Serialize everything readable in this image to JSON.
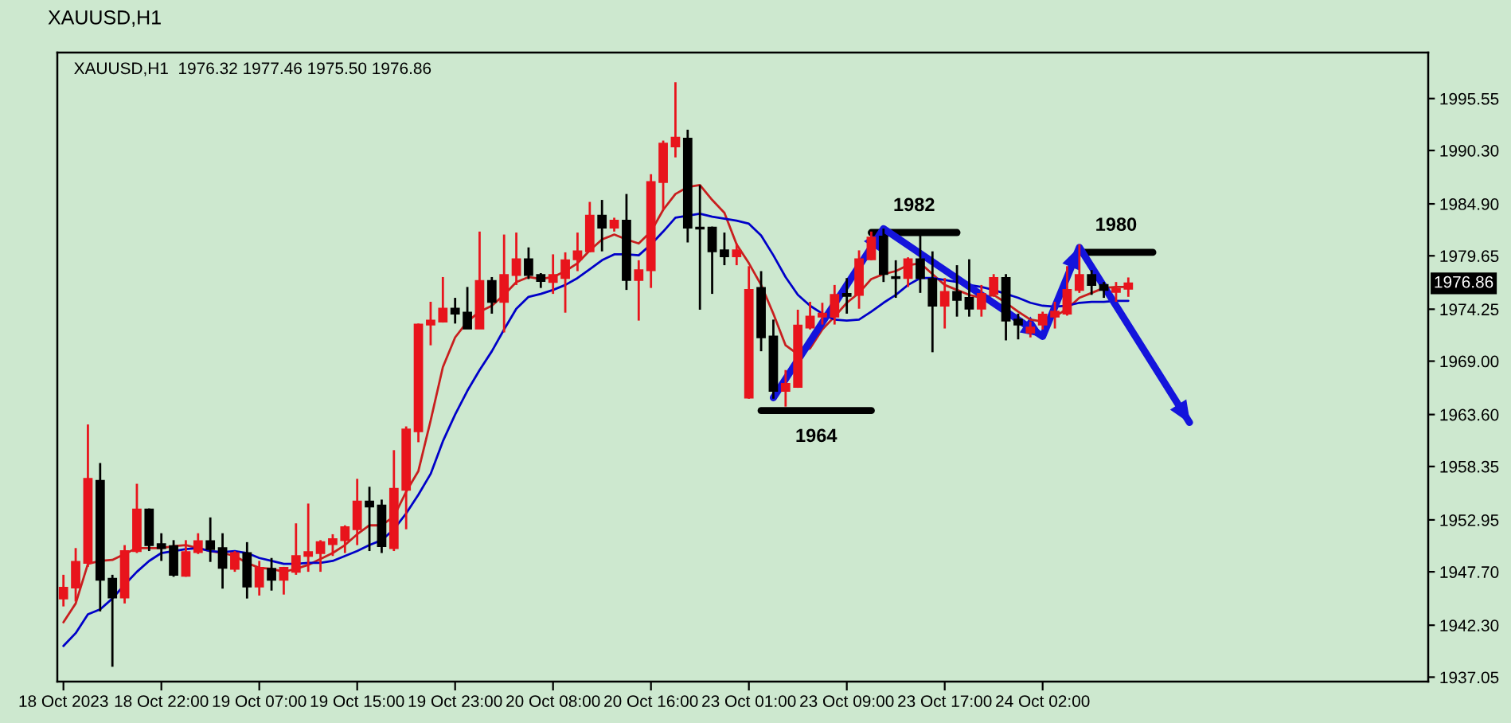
{
  "chart_data": {
    "type": "candlestick",
    "title": "XAUUSD,H1",
    "subtitle": "XAUUSD,H1  1976.32 1977.46 1975.50 1976.86",
    "categories": [
      "18 Oct 2023",
      null,
      null,
      null,
      null,
      null,
      null,
      null,
      "18 Oct 22:00",
      null,
      null,
      null,
      null,
      null,
      null,
      null,
      "19 Oct 07:00",
      null,
      null,
      null,
      null,
      null,
      null,
      null,
      "19 Oct 15:00",
      null,
      null,
      null,
      null,
      null,
      null,
      null,
      "19 Oct 23:00",
      null,
      null,
      null,
      null,
      null,
      null,
      null,
      "20 Oct 08:00",
      null,
      null,
      null,
      null,
      null,
      null,
      null,
      "20 Oct 16:00",
      null,
      null,
      null,
      null,
      null,
      null,
      null,
      "23 Oct 01:00",
      null,
      null,
      null,
      null,
      null,
      null,
      null,
      "23 Oct 09:00",
      null,
      null,
      null,
      null,
      null,
      null,
      null,
      "23 Oct 17:00",
      null,
      null,
      null,
      null,
      null,
      null,
      null,
      "24 Oct 02:00",
      null,
      null,
      null,
      null,
      null,
      null,
      null,
      null,
      null,
      null,
      null,
      null,
      null,
      null,
      null,
      null,
      null,
      null,
      null,
      null,
      null,
      null,
      null,
      null,
      null,
      null,
      null,
      null,
      null,
      null,
      null
    ],
    "ohlc": [
      [
        1945.0,
        1947.4,
        1944.2,
        1946.1
      ],
      [
        1946.1,
        1950.1,
        1944.7,
        1948.7
      ],
      [
        1948.6,
        1962.6,
        1948.2,
        1957.1
      ],
      [
        1956.9,
        1958.7,
        1943.7,
        1946.9
      ],
      [
        1947.0,
        1947.4,
        1938.1,
        1945.1
      ],
      [
        1945.1,
        1950.4,
        1944.5,
        1949.8
      ],
      [
        1949.8,
        1956.6,
        1949.6,
        1954.0
      ],
      [
        1954.0,
        1954.1,
        1949.8,
        1950.4
      ],
      [
        1950.5,
        1951.6,
        1948.8,
        1950.1
      ],
      [
        1950.3,
        1950.9,
        1947.2,
        1947.4
      ],
      [
        1947.3,
        1950.9,
        1947.2,
        1949.7
      ],
      [
        1949.7,
        1951.6,
        1949.5,
        1950.8
      ],
      [
        1950.8,
        1953.2,
        1948.7,
        1950.0
      ],
      [
        1950.1,
        1951.6,
        1946.0,
        1948.1
      ],
      [
        1948.0,
        1949.8,
        1947.7,
        1949.6
      ],
      [
        1949.6,
        1950.7,
        1945.0,
        1946.2
      ],
      [
        1946.2,
        1948.8,
        1945.3,
        1948.1
      ],
      [
        1948.0,
        1949.1,
        1945.8,
        1946.9
      ],
      [
        1946.9,
        1948.2,
        1945.4,
        1948.1
      ],
      [
        1947.7,
        1952.6,
        1947.4,
        1949.3
      ],
      [
        1949.3,
        1954.6,
        1947.7,
        1949.7
      ],
      [
        1949.6,
        1950.9,
        1947.7,
        1950.7
      ],
      [
        1950.5,
        1951.5,
        1949.3,
        1951.0
      ],
      [
        1950.9,
        1952.4,
        1949.6,
        1952.2
      ],
      [
        1952.0,
        1957.1,
        1950.4,
        1954.8
      ],
      [
        1954.8,
        1956.3,
        1949.8,
        1954.3
      ],
      [
        1954.4,
        1955.0,
        1949.6,
        1950.3
      ],
      [
        1950.1,
        1960.0,
        1949.8,
        1956.1
      ],
      [
        1956.0,
        1962.4,
        1952.0,
        1962.1
      ],
      [
        1961.9,
        1972.8,
        1960.8,
        1972.7
      ],
      [
        1972.7,
        1975.0,
        1970.6,
        1973.1
      ],
      [
        1973.0,
        1977.5,
        1972.9,
        1974.3
      ],
      [
        1974.3,
        1975.4,
        1972.8,
        1973.8
      ],
      [
        1973.9,
        1976.5,
        1972.3,
        1972.3
      ],
      [
        1972.3,
        1982.1,
        1972.3,
        1977.1
      ],
      [
        1977.1,
        1977.5,
        1973.8,
        1975.0
      ],
      [
        1975.0,
        1981.8,
        1971.9,
        1977.7
      ],
      [
        1977.7,
        1982.0,
        1976.7,
        1979.3
      ],
      [
        1979.3,
        1980.5,
        1977.3,
        1977.7
      ],
      [
        1977.7,
        1977.9,
        1976.4,
        1977.1
      ],
      [
        1977.0,
        1979.8,
        1975.8,
        1977.7
      ],
      [
        1977.4,
        1980.0,
        1973.9,
        1979.2
      ],
      [
        1979.3,
        1982.0,
        1978.1,
        1980.1
      ],
      [
        1980.1,
        1985.1,
        1980.0,
        1983.7
      ],
      [
        1983.7,
        1985.3,
        1980.1,
        1982.5
      ],
      [
        1982.5,
        1983.5,
        1982.1,
        1983.2
      ],
      [
        1983.2,
        1985.9,
        1976.2,
        1977.2
      ],
      [
        1977.2,
        1979.2,
        1973.1,
        1978.2
      ],
      [
        1978.2,
        1987.9,
        1976.4,
        1987.1
      ],
      [
        1987.1,
        1991.3,
        1984.3,
        1991.0
      ],
      [
        1990.7,
        1997.2,
        1989.6,
        1991.6
      ],
      [
        1991.5,
        1992.4,
        1981.0,
        1982.5
      ],
      [
        1982.5,
        1986.8,
        1974.2,
        1982.4
      ],
      [
        1982.5,
        1982.6,
        1975.8,
        1980.1
      ],
      [
        1980.2,
        1982.0,
        1978.7,
        1979.6
      ],
      [
        1979.6,
        1980.9,
        1978.7,
        1980.2
      ],
      [
        1965.3,
        1978.6,
        1965.2,
        1976.2
      ],
      [
        1976.4,
        1978.1,
        1970.0,
        1971.4
      ],
      [
        1971.5,
        1973.2,
        1965.2,
        1966.0
      ],
      [
        1966.0,
        1968.1,
        1964.4,
        1966.7
      ],
      [
        1966.4,
        1974.2,
        1966.3,
        1972.6
      ],
      [
        1972.4,
        1975.0,
        1972.2,
        1973.5
      ],
      [
        1973.5,
        1974.9,
        1972.7,
        1973.8
      ],
      [
        1973.5,
        1976.7,
        1972.7,
        1975.7
      ],
      [
        1975.8,
        1977.4,
        1973.8,
        1975.6
      ],
      [
        1975.7,
        1980.2,
        1974.3,
        1979.3
      ],
      [
        1979.3,
        1982.1,
        1979.2,
        1981.5
      ],
      [
        1981.6,
        1982.4,
        1977.0,
        1977.8
      ],
      [
        1977.5,
        1979.2,
        1975.4,
        1977.4
      ],
      [
        1977.4,
        1979.5,
        1976.5,
        1979.3
      ],
      [
        1979.3,
        1981.8,
        1975.9,
        1977.4
      ],
      [
        1977.3,
        1980.1,
        1969.9,
        1974.6
      ],
      [
        1974.6,
        1977.4,
        1972.3,
        1976.0
      ],
      [
        1976.0,
        1978.7,
        1973.5,
        1975.2
      ],
      [
        1975.4,
        1979.3,
        1973.5,
        1974.3
      ],
      [
        1974.3,
        1976.7,
        1973.5,
        1975.8
      ],
      [
        1975.8,
        1977.8,
        1975.5,
        1977.4
      ],
      [
        1977.4,
        1977.8,
        1971.1,
        1973.1
      ],
      [
        1973.2,
        1973.8,
        1971.2,
        1972.7
      ],
      [
        1971.9,
        1973.0,
        1971.4,
        1972.4
      ],
      [
        1972.7,
        1974.0,
        1972.2,
        1973.7
      ],
      [
        1973.5,
        1975.0,
        1972.3,
        1974.0
      ],
      [
        1973.8,
        1978.6,
        1973.6,
        1976.2
      ],
      [
        1976.2,
        1980.8,
        1975.9,
        1977.7
      ],
      [
        1977.7,
        1978.2,
        1975.7,
        1976.7
      ],
      [
        1976.7,
        1977.0,
        1975.4,
        1976.2
      ],
      [
        1976.0,
        1977.0,
        1975.0,
        1976.3
      ],
      [
        1976.32,
        1977.46,
        1975.5,
        1976.86
      ],
      null,
      null,
      null,
      null,
      null,
      null,
      null,
      null,
      null,
      null,
      null,
      null,
      null,
      null,
      null,
      null,
      null,
      null,
      null,
      null,
      null,
      null,
      null,
      null
    ],
    "colors": [
      "#e8141c",
      "#e8141c",
      "#e8141c",
      "#000000",
      "#000000",
      "#e8141c",
      "#e8141c",
      "#000000",
      "#000000",
      "#000000",
      "#e8141c",
      "#e8141c",
      "#000000",
      "#000000",
      "#e8141c",
      "#000000",
      "#e8141c",
      "#000000",
      "#e8141c",
      "#e8141c",
      "#e8141c",
      "#e8141c",
      "#e8141c",
      "#e8141c",
      "#e8141c",
      "#000000",
      "#000000",
      "#e8141c",
      "#e8141c",
      "#e8141c",
      "#e8141c",
      "#e8141c",
      "#000000",
      "#000000",
      "#e8141c",
      "#000000",
      "#e8141c",
      "#e8141c",
      "#000000",
      "#000000",
      "#e8141c",
      "#e8141c",
      "#e8141c",
      "#e8141c",
      "#000000",
      "#e8141c",
      "#000000",
      "#e8141c",
      "#e8141c",
      "#e8141c",
      "#e8141c",
      "#000000",
      "#000000",
      "#000000",
      "#000000",
      "#e8141c",
      "#e8141c",
      "#000000",
      "#000000",
      "#e8141c",
      "#e8141c",
      "#e8141c",
      "#e8141c",
      "#e8141c",
      "#000000",
      "#e8141c",
      "#e8141c",
      "#000000",
      "#000000",
      "#e8141c",
      "#000000",
      "#000000",
      "#e8141c",
      "#000000",
      "#000000",
      "#e8141c",
      "#e8141c",
      "#000000",
      "#000000",
      "#e8141c",
      "#e8141c",
      "#e8141c",
      "#e8141c",
      "#e8141c",
      "#000000",
      "#000000",
      "#e8141c",
      "#e8141c",
      null,
      null,
      null,
      null,
      null,
      null,
      null,
      null,
      null,
      null,
      null,
      null,
      null,
      null,
      null,
      null,
      null,
      null,
      null,
      null,
      null,
      null,
      null,
      null
    ],
    "series": [
      {
        "type": "line",
        "color": "#c81e1e",
        "values": [
          1942.6,
          1944.5,
          1948.5,
          1948.8,
          1948.9,
          1949.5,
          1950.1,
          1950.1,
          1950.1,
          1950.3,
          1950.4,
          1950.1,
          1949.8,
          1949.6,
          1949.3,
          1948.6,
          1948.1,
          1948.0,
          1947.7,
          1948.0,
          1948.4,
          1949.0,
          1949.6,
          1950.4,
          1951.5,
          1952.4,
          1952.4,
          1953.3,
          1955.8,
          1957.9,
          1963.0,
          1968.4,
          1971.4,
          1973.0,
          1974.0,
          1974.6,
          1975.7,
          1977.0,
          1977.5,
          1977.3,
          1977.5,
          1978.1,
          1978.9,
          1980.2,
          1981.3,
          1981.8,
          1981.3,
          1980.9,
          1982.1,
          1984.3,
          1985.9,
          1986.6,
          1986.8,
          1985.3,
          1984.0,
          1980.8,
          1978.9,
          1976.7,
          1973.8,
          1970.6,
          1969.7,
          1970.3,
          1972.2,
          1973.5,
          1974.9,
          1975.9,
          1977.3,
          1977.8,
          1978.1,
          1978.7,
          1978.9,
          1977.8,
          1976.7,
          1976.2,
          1975.7,
          1975.4,
          1975.7,
          1974.9,
          1974.0,
          1973.2,
          1973.0,
          1973.5,
          1974.3,
          1975.4,
          1975.9,
          1976.4,
          1976.5,
          1976.5,
          null,
          null,
          null,
          null,
          null,
          null,
          null,
          null,
          null,
          null,
          null,
          null,
          null,
          null,
          null,
          null,
          null,
          null,
          null,
          null,
          null,
          null,
          null,
          null
        ]
      },
      {
        "type": "line",
        "color": "#0000c8",
        "values": [
          1940.2,
          1941.5,
          1943.4,
          1943.9,
          1945.0,
          1946.4,
          1947.7,
          1948.8,
          1949.6,
          1949.8,
          1950.0,
          1950.1,
          1949.8,
          1949.7,
          1949.8,
          1949.6,
          1949.1,
          1948.8,
          1948.5,
          1948.5,
          1948.6,
          1948.6,
          1948.8,
          1949.3,
          1949.8,
          1950.4,
          1950.9,
          1952.0,
          1953.6,
          1955.5,
          1957.6,
          1960.9,
          1963.6,
          1966.0,
          1968.1,
          1970.0,
          1972.2,
          1974.3,
          1975.5,
          1975.8,
          1976.2,
          1976.7,
          1977.4,
          1978.3,
          1979.2,
          1979.8,
          1979.8,
          1979.7,
          1980.8,
          1982.1,
          1983.5,
          1983.7,
          1983.9,
          1983.6,
          1983.4,
          1983.2,
          1982.9,
          1981.7,
          1979.7,
          1977.5,
          1975.7,
          1974.6,
          1973.8,
          1973.2,
          1973.1,
          1973.2,
          1974.0,
          1974.9,
          1975.7,
          1976.7,
          1977.4,
          1977.4,
          1977.2,
          1977.0,
          1976.7,
          1976.5,
          1976.2,
          1975.8,
          1975.4,
          1974.9,
          1974.6,
          1974.5,
          1974.6,
          1974.9,
          1975.0,
          1975.0,
          1975.1,
          1975.1,
          null,
          null,
          null,
          null,
          null,
          null,
          null,
          null,
          null,
          null,
          null,
          null,
          null,
          null,
          null,
          null,
          null,
          null,
          null,
          null,
          null,
          null,
          null,
          null
        ]
      },
      {
        "type": "line",
        "name": "1982",
        "color": "#000000",
        "values": [
          null,
          null,
          null,
          null,
          null,
          null,
          null,
          null,
          null,
          null,
          null,
          null,
          null,
          null,
          null,
          null,
          null,
          null,
          null,
          null,
          null,
          null,
          null,
          null,
          null,
          null,
          null,
          null,
          null,
          null,
          null,
          null,
          null,
          null,
          null,
          null,
          null,
          null,
          null,
          null,
          null,
          null,
          null,
          null,
          null,
          null,
          null,
          null,
          null,
          null,
          null,
          null,
          null,
          null,
          null,
          null,
          null,
          null,
          null,
          null,
          null,
          null,
          null,
          null,
          null,
          null,
          1982,
          1982,
          1982,
          1982,
          1982,
          1982,
          1982,
          1982,
          null,
          null,
          null,
          null,
          null,
          null,
          null,
          null,
          null,
          null,
          null,
          null,
          null,
          null,
          null,
          null,
          null,
          null,
          null,
          null,
          null,
          null,
          null,
          null,
          null,
          null,
          null,
          null,
          null,
          null,
          null,
          null,
          null,
          null,
          null,
          null,
          null,
          null
        ]
      },
      {
        "type": "line",
        "name": "1964",
        "color": "#000000",
        "values": [
          null,
          null,
          null,
          null,
          null,
          null,
          null,
          null,
          null,
          null,
          null,
          null,
          null,
          null,
          null,
          null,
          null,
          null,
          null,
          null,
          null,
          null,
          null,
          null,
          null,
          null,
          null,
          null,
          null,
          null,
          null,
          null,
          null,
          null,
          null,
          null,
          null,
          null,
          null,
          null,
          null,
          null,
          null,
          null,
          null,
          null,
          null,
          null,
          null,
          null,
          null,
          null,
          null,
          null,
          null,
          null,
          null,
          1964,
          1964,
          1964,
          1964,
          1964,
          1964,
          1964,
          1964,
          1964,
          1964,
          null,
          null,
          null,
          null,
          null,
          null,
          null,
          null,
          null,
          null,
          null,
          null,
          null,
          null,
          null,
          null,
          null,
          null,
          null,
          null,
          null,
          null,
          null,
          null,
          null,
          null,
          null,
          null,
          null,
          null,
          null,
          null,
          null,
          null,
          null,
          null,
          null,
          null,
          null,
          null,
          null,
          null,
          null,
          null,
          null
        ]
      },
      {
        "type": "line",
        "name": "1980",
        "color": "#000000",
        "values": [
          null,
          null,
          null,
          null,
          null,
          null,
          null,
          null,
          null,
          null,
          null,
          null,
          null,
          null,
          null,
          null,
          null,
          null,
          null,
          null,
          null,
          null,
          null,
          null,
          null,
          null,
          null,
          null,
          null,
          null,
          null,
          null,
          null,
          null,
          null,
          null,
          null,
          null,
          null,
          null,
          null,
          null,
          null,
          null,
          null,
          null,
          null,
          null,
          null,
          null,
          null,
          null,
          null,
          null,
          null,
          null,
          null,
          null,
          null,
          null,
          null,
          null,
          null,
          null,
          null,
          null,
          null,
          null,
          null,
          null,
          null,
          null,
          null,
          null,
          null,
          null,
          null,
          null,
          null,
          null,
          null,
          null,
          null,
          1980,
          1980,
          1980,
          1980,
          1980,
          1980,
          1980,
          null,
          null,
          null,
          null,
          null,
          null,
          null,
          null,
          null,
          null,
          null,
          null,
          null,
          null,
          null,
          null,
          null,
          null,
          null,
          null,
          null,
          null
        ]
      },
      {
        "type": "line",
        "color": "#1414dc",
        "values": [
          null,
          null,
          null,
          null,
          null,
          null,
          null,
          null,
          null,
          null,
          null,
          null,
          null,
          null,
          null,
          null,
          null,
          null,
          null,
          null,
          null,
          null,
          null,
          null,
          null,
          null,
          null,
          null,
          null,
          null,
          null,
          null,
          null,
          null,
          null,
          null,
          null,
          null,
          null,
          null,
          null,
          null,
          null,
          null,
          null,
          null,
          null,
          null,
          null,
          null,
          null,
          null,
          null,
          null,
          null,
          null,
          null,
          null,
          1965.3,
          null,
          null,
          null,
          null,
          null,
          null,
          null,
          null,
          1982.4,
          null,
          null,
          null,
          null,
          null,
          null,
          null,
          null,
          null,
          null,
          null,
          null,
          1971.5,
          null,
          null,
          1980.5,
          null,
          null,
          null,
          null,
          null,
          null,
          null,
          null,
          1962.8,
          null,
          null,
          null,
          null,
          null,
          null,
          null,
          null,
          null,
          null,
          null,
          null,
          null,
          null,
          null,
          null,
          null,
          null,
          null
        ]
      }
    ],
    "annotations": [
      {
        "text": "1976.86",
        "y": 1976.86
      }
    ],
    "ylim": [
      1936.6,
      2000.2
    ],
    "yticks": [
      1937.05,
      {
        "value": 1942.3,
        "label": "1942.30"
      },
      {
        "value": 1947.7,
        "label": "1947.70"
      },
      1952.95,
      1958.35,
      {
        "value": 1963.6,
        "label": "1963.60"
      },
      {
        "value": 1969.0,
        "label": "1969.00"
      },
      1974.25,
      1979.65,
      {
        "value": 1984.9,
        "label": "1984.90"
      },
      {
        "value": 1990.3,
        "label": "1990.30"
      },
      1995.55
    ]
  }
}
